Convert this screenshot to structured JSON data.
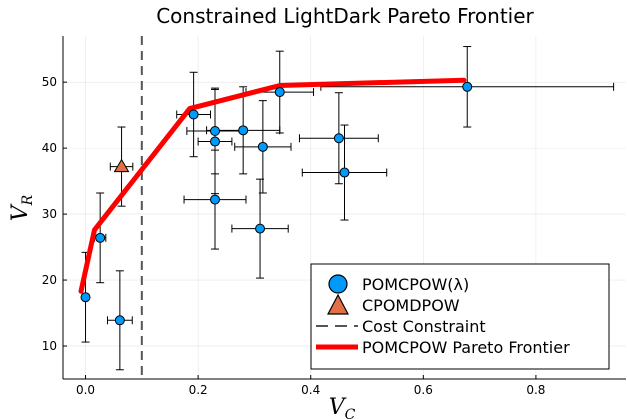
{
  "chart_data": {
    "type": "scatter",
    "title": "Constrained LightDark Pareto Frontier",
    "xlabel": {
      "main": "V",
      "sub": "C"
    },
    "ylabel": {
      "main": "V",
      "sub": "R"
    },
    "xlim": [
      -0.04,
      0.96
    ],
    "ylim": [
      5,
      57
    ],
    "xticks": [
      0.0,
      0.2,
      0.4,
      0.6,
      0.8
    ],
    "xtick_labels": [
      "0.0",
      "0.2",
      "0.4",
      "0.6",
      "0.8"
    ],
    "yticks": [
      10,
      20,
      30,
      40,
      50
    ],
    "ytick_labels": [
      "10",
      "20",
      "30",
      "40",
      "50"
    ],
    "grid": true,
    "legend_position": "bottom-right",
    "colors": {
      "pomcpow": "#009AFA",
      "cpomdpow": "#E26F46",
      "frontier": "#FF0000",
      "constraint": "#555555"
    },
    "series": [
      {
        "name": "POMCPOW(λ)",
        "kind": "points",
        "marker": "circle",
        "points": [
          {
            "x": 0.0,
            "y": 17.4,
            "xerr": 0.0,
            "yerr": 6.8
          },
          {
            "x": 0.026,
            "y": 26.4,
            "xerr": 0.01,
            "yerr": 6.8
          },
          {
            "x": 0.061,
            "y": 13.9,
            "xerr": 0.022,
            "yerr": 7.5
          },
          {
            "x": 0.192,
            "y": 45.1,
            "xerr": 0.03,
            "yerr": 6.4
          },
          {
            "x": 0.23,
            "y": 42.6,
            "xerr": 0.05,
            "yerr": 6.5
          },
          {
            "x": 0.23,
            "y": 41.0,
            "xerr": 0.03,
            "yerr": 7.9
          },
          {
            "x": 0.23,
            "y": 32.2,
            "xerr": 0.055,
            "yerr": 7.5
          },
          {
            "x": 0.28,
            "y": 42.7,
            "xerr": 0.065,
            "yerr": 6.6
          },
          {
            "x": 0.315,
            "y": 40.2,
            "xerr": 0.05,
            "yerr": 7.0
          },
          {
            "x": 0.31,
            "y": 27.8,
            "xerr": 0.05,
            "yerr": 7.5
          },
          {
            "x": 0.345,
            "y": 48.5,
            "xerr": 0.06,
            "yerr": 6.2
          },
          {
            "x": 0.45,
            "y": 41.5,
            "xerr": 0.07,
            "yerr": 6.9
          },
          {
            "x": 0.46,
            "y": 36.3,
            "xerr": 0.075,
            "yerr": 7.2
          },
          {
            "x": 0.678,
            "y": 49.3,
            "xerr": 0.26,
            "yerr": 6.1
          }
        ]
      },
      {
        "name": "CPOMDPOW",
        "kind": "points",
        "marker": "triangle",
        "points": [
          {
            "x": 0.064,
            "y": 37.2,
            "xerr": 0.02,
            "yerr": 6.0
          }
        ]
      },
      {
        "name": "Cost Constraint",
        "kind": "vline",
        "x": 0.1
      },
      {
        "name": "POMCPOW Pareto Frontier",
        "kind": "line",
        "points": [
          {
            "x": -0.008,
            "y": 18.3
          },
          {
            "x": 0.016,
            "y": 27.6
          },
          {
            "x": 0.185,
            "y": 46.0
          },
          {
            "x": 0.345,
            "y": 49.5
          },
          {
            "x": 0.672,
            "y": 50.3
          }
        ]
      }
    ]
  }
}
